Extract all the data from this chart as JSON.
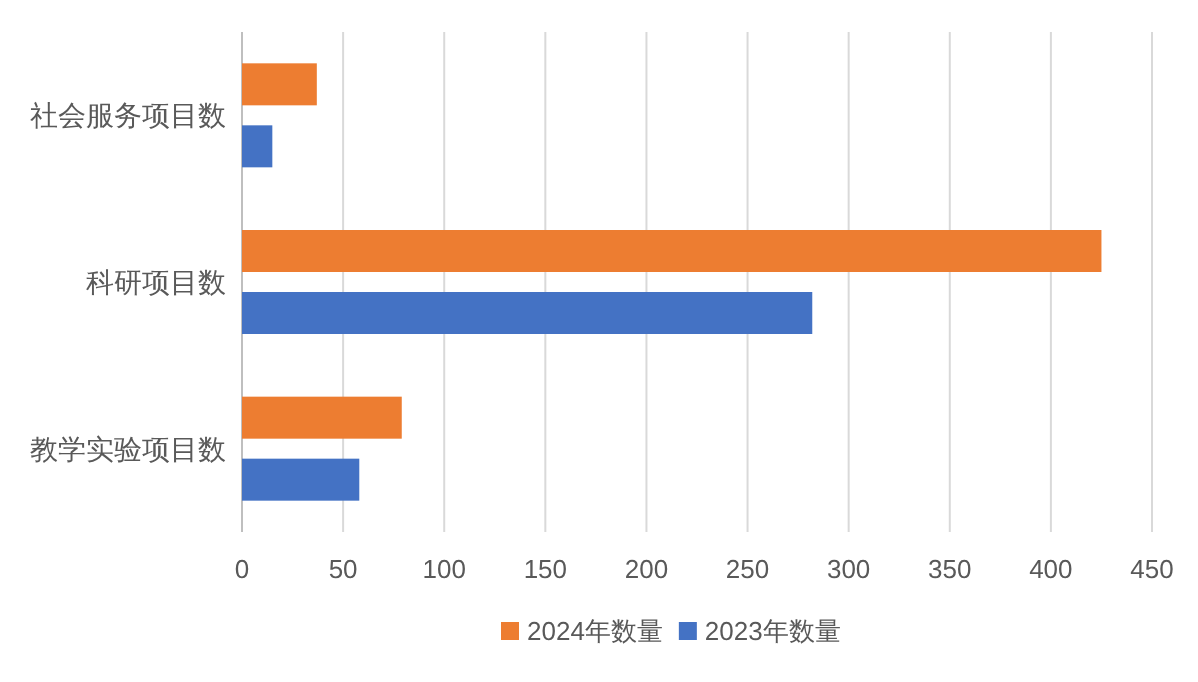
{
  "chart_data": {
    "type": "bar",
    "orientation": "horizontal",
    "categories": [
      "社会服务项目数",
      "科研项目数",
      "教学实验项目数"
    ],
    "series": [
      {
        "name": "2024年数量",
        "color": "#ed7d31",
        "values": [
          37,
          425,
          79
        ]
      },
      {
        "name": "2023年数量",
        "color": "#4472c4",
        "values": [
          15,
          282,
          58
        ]
      }
    ],
    "xlim": [
      0,
      450
    ],
    "xticks": [
      0,
      50,
      100,
      150,
      200,
      250,
      300,
      350,
      400,
      450
    ],
    "grid": "x",
    "legend": "bottom"
  }
}
